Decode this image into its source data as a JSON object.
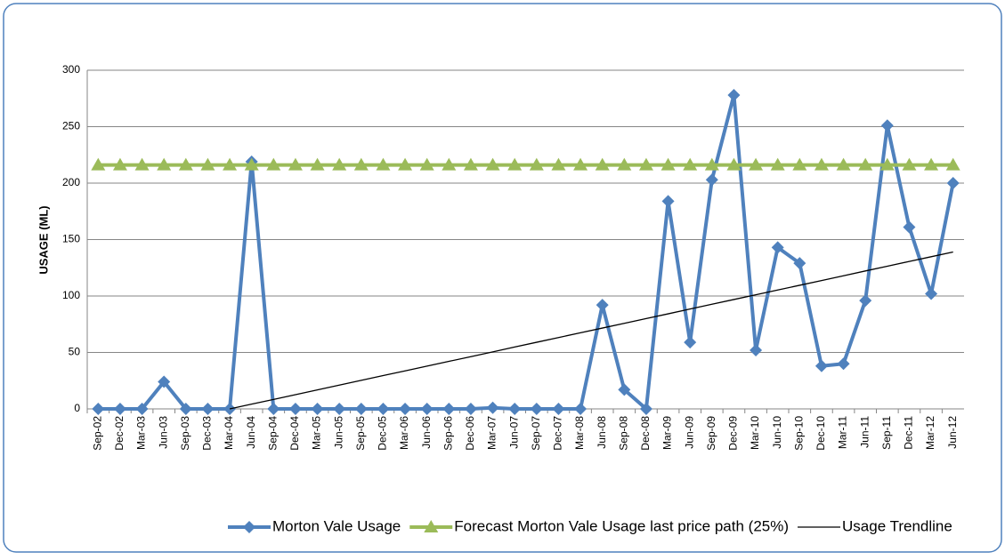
{
  "chart_data": {
    "type": "line",
    "y_label": "USAGE (ML)",
    "categories": [
      "Sep-02",
      "Dec-02",
      "Mar-03",
      "Jun-03",
      "Sep-03",
      "Dec-03",
      "Mar-04",
      "Jun-04",
      "Sep-04",
      "Dec-04",
      "Mar-05",
      "Jun-05",
      "Sep-05",
      "Dec-05",
      "Mar-06",
      "Jun-06",
      "Sep-06",
      "Dec-06",
      "Mar-07",
      "Jun-07",
      "Sep-07",
      "Dec-07",
      "Mar-08",
      "Jun-08",
      "Sep-08",
      "Dec-08",
      "Mar-09",
      "Jun-09",
      "Sep-09",
      "Dec-09",
      "Mar-10",
      "Jun-10",
      "Sep-10",
      "Dec-10",
      "Mar-11",
      "Jun-11",
      "Sep-11",
      "Dec-11",
      "Mar-12",
      "Jun-12"
    ],
    "series": [
      {
        "name": "Morton Vale Usage",
        "color": "#4f81bd",
        "marker": "diamond",
        "values": [
          0,
          0,
          0,
          24,
          0,
          0,
          0,
          219,
          0,
          0,
          0,
          0,
          0,
          0,
          0,
          0,
          0,
          0,
          1,
          0,
          0,
          0,
          0,
          92,
          17,
          0,
          184,
          59,
          203,
          278,
          52,
          143,
          129,
          38,
          40,
          96,
          251,
          161,
          102,
          200
        ]
      },
      {
        "name": "Forecast Morton Vale Usage last price path (25%)",
        "color": "#9bbb59",
        "marker": "triangle",
        "values": [
          216,
          216,
          216,
          216,
          216,
          216,
          216,
          216,
          216,
          216,
          216,
          216,
          216,
          216,
          216,
          216,
          216,
          216,
          216,
          216,
          216,
          216,
          216,
          216,
          216,
          216,
          216,
          216,
          216,
          216,
          216,
          216,
          216,
          216,
          216,
          216,
          216,
          216,
          216,
          216
        ]
      },
      {
        "name": "Usage Trendline",
        "color": "#000000",
        "marker": "none",
        "values": [
          null,
          null,
          null,
          null,
          null,
          null,
          0,
          4.2,
          8.4,
          12.6,
          16.8,
          21.1,
          25.3,
          29.5,
          33.7,
          37.9,
          42.1,
          46.3,
          50.5,
          54.8,
          59,
          63.2,
          67.4,
          71.6,
          75.8,
          80,
          84.2,
          88.5,
          92.7,
          96.9,
          101.1,
          105.3,
          109.5,
          113.7,
          117.9,
          122.2,
          126.4,
          130.6,
          134.8,
          139
        ]
      }
    ],
    "ylim": [
      0,
      300
    ],
    "yticks": [
      0,
      50,
      100,
      150,
      200,
      250,
      300
    ],
    "grid": true,
    "legend": "bottom"
  }
}
